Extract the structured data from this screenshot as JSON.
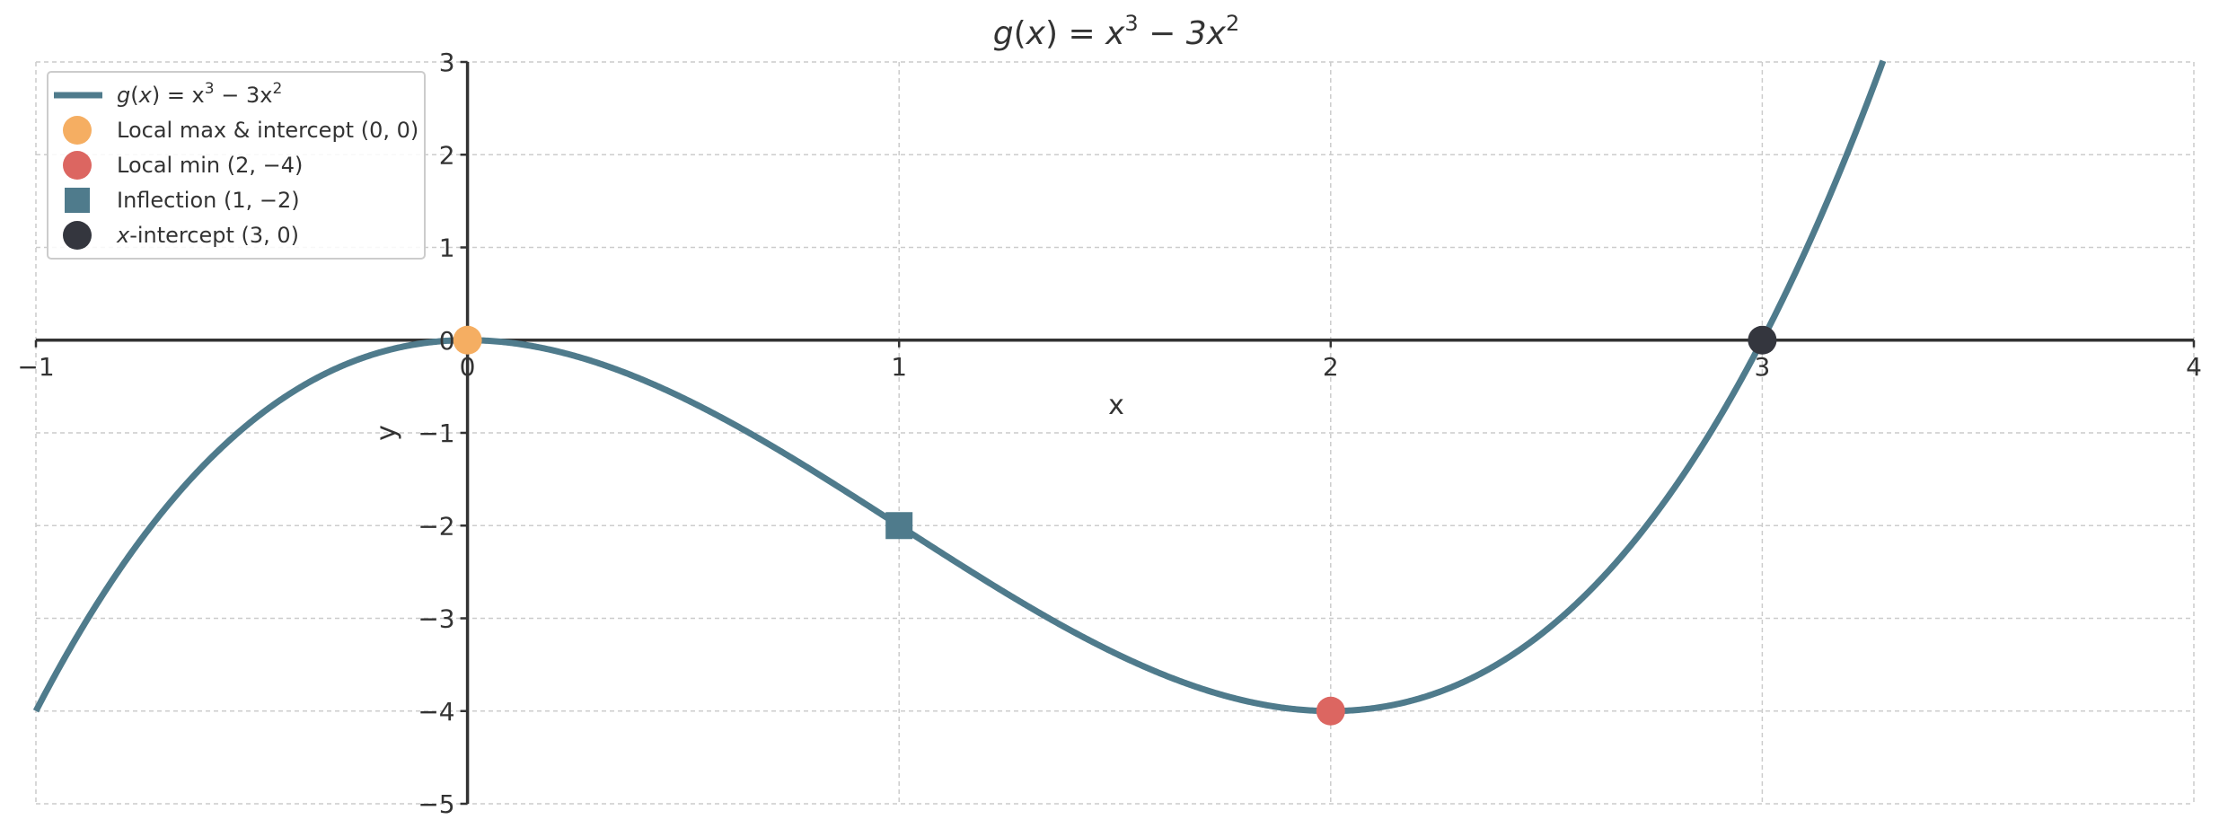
{
  "chart_data": {
    "type": "line",
    "title": "g(x) = x³ − 3x²",
    "title_parts": {
      "fn": "g",
      "arg": "x",
      "eq": " = x",
      "exp1": "3",
      "minus": " − 3x",
      "exp2": "2"
    },
    "xlabel": "x",
    "ylabel": "y",
    "xlim": [
      -1,
      4
    ],
    "ylim": [
      -5,
      3
    ],
    "x_ticks": [
      -1,
      0,
      1,
      2,
      3,
      4
    ],
    "x_tick_labels": [
      "−1",
      "0",
      "1",
      "2",
      "3",
      "4"
    ],
    "y_ticks": [
      -5,
      -4,
      -3,
      -2,
      -1,
      0,
      1,
      2,
      3
    ],
    "y_tick_labels": [
      "−5",
      "−4",
      "−3",
      "−2",
      "−1",
      "0",
      "1",
      "2",
      "3"
    ],
    "grid": true,
    "legend_position": "top-left",
    "series": [
      {
        "name": "g(x) = x³ − 3x²",
        "function": "x^3 - 3x^2",
        "x_start": -1,
        "x_end": 4,
        "color": "#4f7b8c"
      }
    ],
    "points": [
      {
        "name": "Local max & intercept (0, 0)",
        "x": 0,
        "y": 0,
        "marker": "circle",
        "color": "#f5ae62"
      },
      {
        "name": "Local min (2, −4)",
        "x": 2,
        "y": -4,
        "marker": "circle",
        "color": "#dc6661"
      },
      {
        "name": "Inflection (1, −2)",
        "x": 1,
        "y": -2,
        "marker": "square",
        "color": "#4f7b8c"
      },
      {
        "name": "x-intercept (3, 0)",
        "x": 3,
        "y": 0,
        "marker": "circle",
        "color": "#34363e"
      }
    ],
    "legend": {
      "line_label": {
        "fn": "g",
        "arg": "x",
        "eq": " = x",
        "exp1": "3",
        "minus": " − 3x",
        "exp2": "2"
      },
      "items": [
        {
          "text": "Local max & intercept (0, 0)"
        },
        {
          "text": "Local min (2, −4)"
        },
        {
          "text": "Inflection (1, −2)"
        },
        {
          "italic": "x",
          "text": "-intercept (3, 0)"
        }
      ]
    },
    "colors": {
      "curve": "#4f7b8c",
      "axis": "#333333",
      "grid": "#cccccc"
    }
  }
}
